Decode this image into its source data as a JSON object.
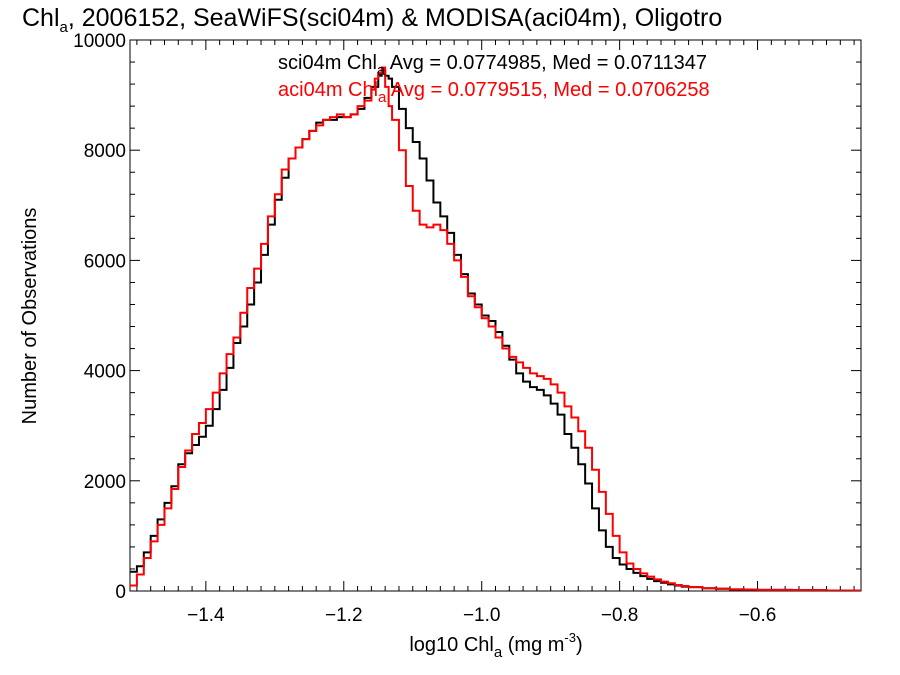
{
  "chart_data": {
    "type": "line",
    "title": {
      "pre": "Chl",
      "sub": "a",
      "post": ", 2006152, SeaWiFS(sci04m) & MODISA(aci04m), Oligotro"
    },
    "xlabel": {
      "pre": "log10 Chl",
      "sub": "a",
      "mid": " (mg m",
      "sup": "-3",
      "post": ")"
    },
    "ylabel": "Number of Observations",
    "xlim": [
      -1.51,
      -0.45
    ],
    "ylim": [
      0,
      10000
    ],
    "x_ticks": [
      -1.4,
      -1.2,
      -1.0,
      -0.8,
      -0.6
    ],
    "x_tick_labels": [
      "−1.4",
      "−1.2",
      "−1.0",
      "−0.8",
      "−0.6"
    ],
    "y_ticks": [
      0,
      2000,
      4000,
      6000,
      8000,
      10000
    ],
    "y_tick_labels": [
      "0",
      "2000",
      "4000",
      "6000",
      "8000",
      "10000"
    ],
    "grid": false,
    "series": [
      {
        "color": "#000000",
        "legend": {
          "pre": "sci04m Chl",
          "sub": "a",
          "post": " Avg = 0.0774985, Med = 0.0711347"
        },
        "points": [
          [
            -1.51,
            350
          ],
          [
            -1.5,
            450
          ],
          [
            -1.49,
            700
          ],
          [
            -1.48,
            1000
          ],
          [
            -1.47,
            1300
          ],
          [
            -1.46,
            1600
          ],
          [
            -1.45,
            1900
          ],
          [
            -1.44,
            2300
          ],
          [
            -1.43,
            2500
          ],
          [
            -1.42,
            2650
          ],
          [
            -1.41,
            2800
          ],
          [
            -1.4,
            3000
          ],
          [
            -1.39,
            3300
          ],
          [
            -1.38,
            3650
          ],
          [
            -1.37,
            4050
          ],
          [
            -1.36,
            4500
          ],
          [
            -1.35,
            4800
          ],
          [
            -1.34,
            5200
          ],
          [
            -1.33,
            5600
          ],
          [
            -1.32,
            6100
          ],
          [
            -1.31,
            6650
          ],
          [
            -1.3,
            7100
          ],
          [
            -1.29,
            7500
          ],
          [
            -1.28,
            7850
          ],
          [
            -1.27,
            8050
          ],
          [
            -1.26,
            8200
          ],
          [
            -1.25,
            8350
          ],
          [
            -1.24,
            8500
          ],
          [
            -1.23,
            8550
          ],
          [
            -1.22,
            8550
          ],
          [
            -1.21,
            8600
          ],
          [
            -1.2,
            8600
          ],
          [
            -1.19,
            8650
          ],
          [
            -1.18,
            8750
          ],
          [
            -1.17,
            8950
          ],
          [
            -1.16,
            9150
          ],
          [
            -1.15,
            9350
          ],
          [
            -1.145,
            9450
          ],
          [
            -1.14,
            9350
          ],
          [
            -1.135,
            9300
          ],
          [
            -1.13,
            9150
          ],
          [
            -1.12,
            8750
          ],
          [
            -1.11,
            8400
          ],
          [
            -1.1,
            8150
          ],
          [
            -1.09,
            7850
          ],
          [
            -1.08,
            7450
          ],
          [
            -1.07,
            7050
          ],
          [
            -1.06,
            6800
          ],
          [
            -1.05,
            6500
          ],
          [
            -1.04,
            6100
          ],
          [
            -1.03,
            5750
          ],
          [
            -1.02,
            5400
          ],
          [
            -1.01,
            5200
          ],
          [
            -1.0,
            5000
          ],
          [
            -0.99,
            4900
          ],
          [
            -0.98,
            4700
          ],
          [
            -0.97,
            4450
          ],
          [
            -0.96,
            4200
          ],
          [
            -0.95,
            3950
          ],
          [
            -0.94,
            3800
          ],
          [
            -0.93,
            3700
          ],
          [
            -0.92,
            3650
          ],
          [
            -0.91,
            3550
          ],
          [
            -0.9,
            3400
          ],
          [
            -0.89,
            3200
          ],
          [
            -0.88,
            2850
          ],
          [
            -0.87,
            2600
          ],
          [
            -0.86,
            2300
          ],
          [
            -0.85,
            1950
          ],
          [
            -0.84,
            1500
          ],
          [
            -0.83,
            1100
          ],
          [
            -0.82,
            800
          ],
          [
            -0.81,
            600
          ],
          [
            -0.8,
            480
          ],
          [
            -0.79,
            400
          ],
          [
            -0.78,
            330
          ],
          [
            -0.77,
            270
          ],
          [
            -0.76,
            220
          ],
          [
            -0.75,
            180
          ],
          [
            -0.74,
            150
          ],
          [
            -0.73,
            120
          ],
          [
            -0.72,
            100
          ],
          [
            -0.71,
            80
          ],
          [
            -0.7,
            70
          ],
          [
            -0.68,
            50
          ],
          [
            -0.66,
            40
          ],
          [
            -0.64,
            30
          ],
          [
            -0.62,
            25
          ],
          [
            -0.6,
            20
          ],
          [
            -0.55,
            15
          ],
          [
            -0.5,
            10
          ],
          [
            -0.45,
            8
          ]
        ]
      },
      {
        "color": "#ff0000",
        "legend": {
          "pre": "aci04m Chl",
          "sub": "a",
          "post": " Avg = 0.0779515, Med = 0.0706258"
        },
        "points": [
          [
            -1.51,
            100
          ],
          [
            -1.5,
            300
          ],
          [
            -1.49,
            600
          ],
          [
            -1.48,
            900
          ],
          [
            -1.47,
            1200
          ],
          [
            -1.46,
            1500
          ],
          [
            -1.45,
            1850
          ],
          [
            -1.44,
            2250
          ],
          [
            -1.43,
            2550
          ],
          [
            -1.42,
            2850
          ],
          [
            -1.41,
            3050
          ],
          [
            -1.4,
            3300
          ],
          [
            -1.39,
            3600
          ],
          [
            -1.38,
            3950
          ],
          [
            -1.37,
            4300
          ],
          [
            -1.36,
            4600
          ],
          [
            -1.35,
            5050
          ],
          [
            -1.34,
            5500
          ],
          [
            -1.33,
            5850
          ],
          [
            -1.32,
            6300
          ],
          [
            -1.31,
            6800
          ],
          [
            -1.3,
            7200
          ],
          [
            -1.29,
            7650
          ],
          [
            -1.28,
            7850
          ],
          [
            -1.27,
            8050
          ],
          [
            -1.26,
            8200
          ],
          [
            -1.25,
            8350
          ],
          [
            -1.24,
            8450
          ],
          [
            -1.23,
            8550
          ],
          [
            -1.22,
            8600
          ],
          [
            -1.21,
            8650
          ],
          [
            -1.2,
            8600
          ],
          [
            -1.19,
            8650
          ],
          [
            -1.18,
            8800
          ],
          [
            -1.17,
            8900
          ],
          [
            -1.16,
            9100
          ],
          [
            -1.155,
            9300
          ],
          [
            -1.15,
            9400
          ],
          [
            -1.145,
            9500
          ],
          [
            -1.14,
            9150
          ],
          [
            -1.135,
            8800
          ],
          [
            -1.13,
            8550
          ],
          [
            -1.12,
            8000
          ],
          [
            -1.11,
            7350
          ],
          [
            -1.1,
            6900
          ],
          [
            -1.09,
            6650
          ],
          [
            -1.08,
            6600
          ],
          [
            -1.07,
            6650
          ],
          [
            -1.06,
            6550
          ],
          [
            -1.05,
            6300
          ],
          [
            -1.04,
            6000
          ],
          [
            -1.03,
            5700
          ],
          [
            -1.02,
            5350
          ],
          [
            -1.01,
            5150
          ],
          [
            -1.0,
            4950
          ],
          [
            -0.99,
            4800
          ],
          [
            -0.98,
            4600
          ],
          [
            -0.97,
            4400
          ],
          [
            -0.96,
            4250
          ],
          [
            -0.95,
            4150
          ],
          [
            -0.94,
            4050
          ],
          [
            -0.93,
            3950
          ],
          [
            -0.92,
            3900
          ],
          [
            -0.91,
            3850
          ],
          [
            -0.9,
            3750
          ],
          [
            -0.89,
            3600
          ],
          [
            -0.88,
            3350
          ],
          [
            -0.87,
            3150
          ],
          [
            -0.86,
            2900
          ],
          [
            -0.85,
            2600
          ],
          [
            -0.84,
            2200
          ],
          [
            -0.83,
            1800
          ],
          [
            -0.82,
            1400
          ],
          [
            -0.81,
            1000
          ],
          [
            -0.8,
            700
          ],
          [
            -0.79,
            500
          ],
          [
            -0.78,
            400
          ],
          [
            -0.77,
            320
          ],
          [
            -0.76,
            260
          ],
          [
            -0.75,
            210
          ],
          [
            -0.74,
            170
          ],
          [
            -0.73,
            140
          ],
          [
            -0.72,
            110
          ],
          [
            -0.71,
            90
          ],
          [
            -0.7,
            70
          ],
          [
            -0.68,
            50
          ],
          [
            -0.66,
            40
          ],
          [
            -0.64,
            30
          ],
          [
            -0.62,
            25
          ],
          [
            -0.6,
            20
          ],
          [
            -0.55,
            15
          ],
          [
            -0.5,
            10
          ],
          [
            -0.45,
            8
          ]
        ]
      }
    ]
  }
}
